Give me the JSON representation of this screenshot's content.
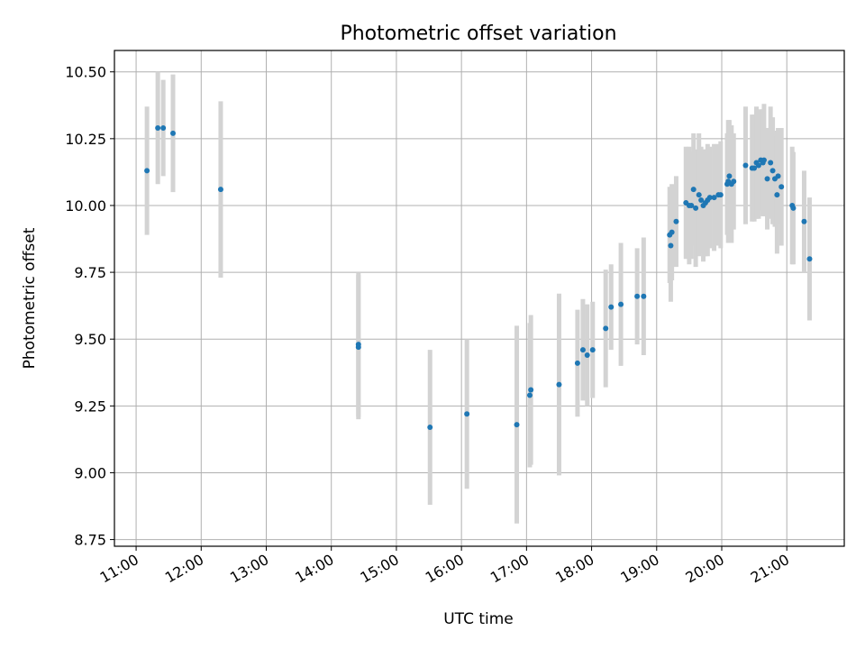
{
  "chart_data": {
    "type": "scatter",
    "title": "Photometric offset variation",
    "xlabel": "UTC time",
    "ylabel": "Photometric offset",
    "x_ticks": [
      "11:00",
      "12:00",
      "13:00",
      "14:00",
      "15:00",
      "16:00",
      "17:00",
      "18:00",
      "19:00",
      "20:00",
      "21:00"
    ],
    "y_ticks": [
      "8.75",
      "9.00",
      "9.25",
      "9.50",
      "9.75",
      "10.00",
      "10.25",
      "10.50"
    ],
    "xlim": [
      "10:40",
      "21:53"
    ],
    "ylim": [
      8.725,
      10.58
    ],
    "grid": true,
    "colors": {
      "points": "#1f77b4",
      "errorbars": "#d3d3d3",
      "grid": "#b0b0b0"
    },
    "series": [
      {
        "x": [
          "11:10",
          "11:20",
          "11:25",
          "11:34",
          "12:18",
          "14:25",
          "14:25",
          "15:31",
          "16:05",
          "16:51",
          "17:03",
          "17:04",
          "17:30",
          "17:47",
          "17:52",
          "17:56",
          "18:01",
          "18:13",
          "18:18",
          "18:27",
          "18:42",
          "18:48",
          "19:12",
          "19:13",
          "19:14",
          "19:18",
          "19:27",
          "19:30",
          "19:32",
          "19:34",
          "19:36",
          "19:39",
          "19:41",
          "19:43",
          "19:45",
          "19:47",
          "19:49",
          "19:53",
          "19:57",
          "19:59",
          "20:05",
          "20:06",
          "20:07",
          "20:09",
          "20:11",
          "20:22",
          "20:28",
          "20:30",
          "20:32",
          "20:34",
          "20:36",
          "20:38",
          "20:39",
          "20:42",
          "20:45",
          "20:47",
          "20:49",
          "20:51",
          "20:52",
          "20:55",
          "21:05",
          "21:06",
          "21:16",
          "21:21"
        ],
        "y": [
          10.13,
          10.29,
          10.29,
          10.27,
          10.06,
          9.48,
          9.47,
          9.17,
          9.22,
          9.18,
          9.29,
          9.31,
          9.33,
          9.41,
          9.46,
          9.44,
          9.46,
          9.54,
          9.62,
          9.63,
          9.66,
          9.66,
          9.89,
          9.85,
          9.9,
          9.94,
          10.01,
          10.0,
          10.0,
          10.06,
          9.99,
          10.04,
          10.02,
          10.0,
          10.01,
          10.02,
          10.03,
          10.03,
          10.04,
          10.04,
          10.08,
          10.09,
          10.11,
          10.08,
          10.09,
          10.15,
          10.14,
          10.14,
          10.16,
          10.15,
          10.17,
          10.16,
          10.17,
          10.1,
          10.16,
          10.13,
          10.1,
          10.04,
          10.11,
          10.07,
          10.0,
          9.99,
          9.94,
          9.8
        ],
        "yerr": [
          0.24,
          0.21,
          0.18,
          0.22,
          0.33,
          0.27,
          0.27,
          0.29,
          0.28,
          0.37,
          0.27,
          0.28,
          0.34,
          0.2,
          0.19,
          0.19,
          0.18,
          0.22,
          0.16,
          0.23,
          0.18,
          0.22,
          0.18,
          0.21,
          0.18,
          0.17,
          0.21,
          0.22,
          0.2,
          0.21,
          0.22,
          0.23,
          0.2,
          0.21,
          0.2,
          0.21,
          0.19,
          0.2,
          0.19,
          0.2,
          0.19,
          0.23,
          0.21,
          0.22,
          0.18,
          0.22,
          0.2,
          0.2,
          0.21,
          0.2,
          0.19,
          0.2,
          0.21,
          0.19,
          0.21,
          0.2,
          0.18,
          0.22,
          0.18,
          0.22,
          0.22,
          0.21,
          0.19,
          0.23
        ]
      }
    ]
  }
}
